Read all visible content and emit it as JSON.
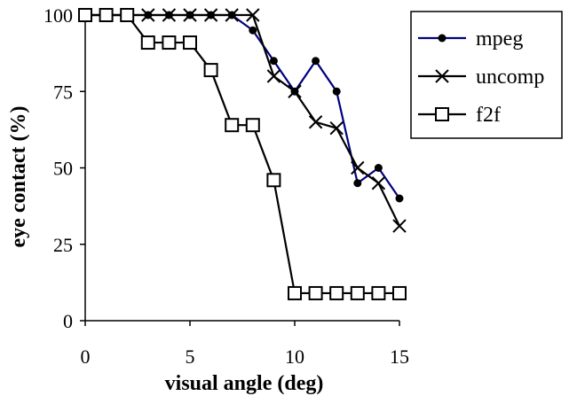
{
  "chart_data": {
    "type": "line",
    "title": "",
    "xlabel": "visual angle (deg)",
    "ylabel": "eye contact (%)",
    "xlim": [
      0,
      15
    ],
    "ylim": [
      0,
      100
    ],
    "x_ticks": [
      "0",
      "5",
      "10",
      "15"
    ],
    "y_ticks": [
      "0",
      "25",
      "50",
      "75",
      "100"
    ],
    "grid": false,
    "legend_position": "top-right",
    "series": [
      {
        "name": "mpeg",
        "marker": "filled-circle",
        "color": "#000080",
        "x": [
          0,
          1,
          2,
          3,
          4,
          5,
          6,
          7,
          8,
          9,
          10,
          11,
          12,
          13,
          14,
          15
        ],
        "y": [
          100,
          100,
          100,
          100,
          100,
          100,
          100,
          100,
          95,
          85,
          75,
          85,
          75,
          45,
          50,
          40
        ]
      },
      {
        "name": "uncomp",
        "marker": "x",
        "color": "#000000",
        "x": [
          0,
          1,
          2,
          3,
          4,
          5,
          6,
          7,
          8,
          9,
          10,
          11,
          12,
          13,
          14,
          15
        ],
        "y": [
          100,
          100,
          100,
          100,
          100,
          100,
          100,
          100,
          100,
          80,
          75,
          65,
          63,
          50,
          45,
          31
        ]
      },
      {
        "name": "f2f",
        "marker": "open-square",
        "color": "#000000",
        "x": [
          0,
          1,
          2,
          3,
          4,
          5,
          6,
          7,
          8,
          9,
          10,
          11,
          12,
          13,
          14,
          15
        ],
        "y": [
          100,
          100,
          100,
          91,
          91,
          91,
          82,
          64,
          64,
          46,
          9,
          9,
          9,
          9,
          9,
          9
        ]
      }
    ]
  }
}
